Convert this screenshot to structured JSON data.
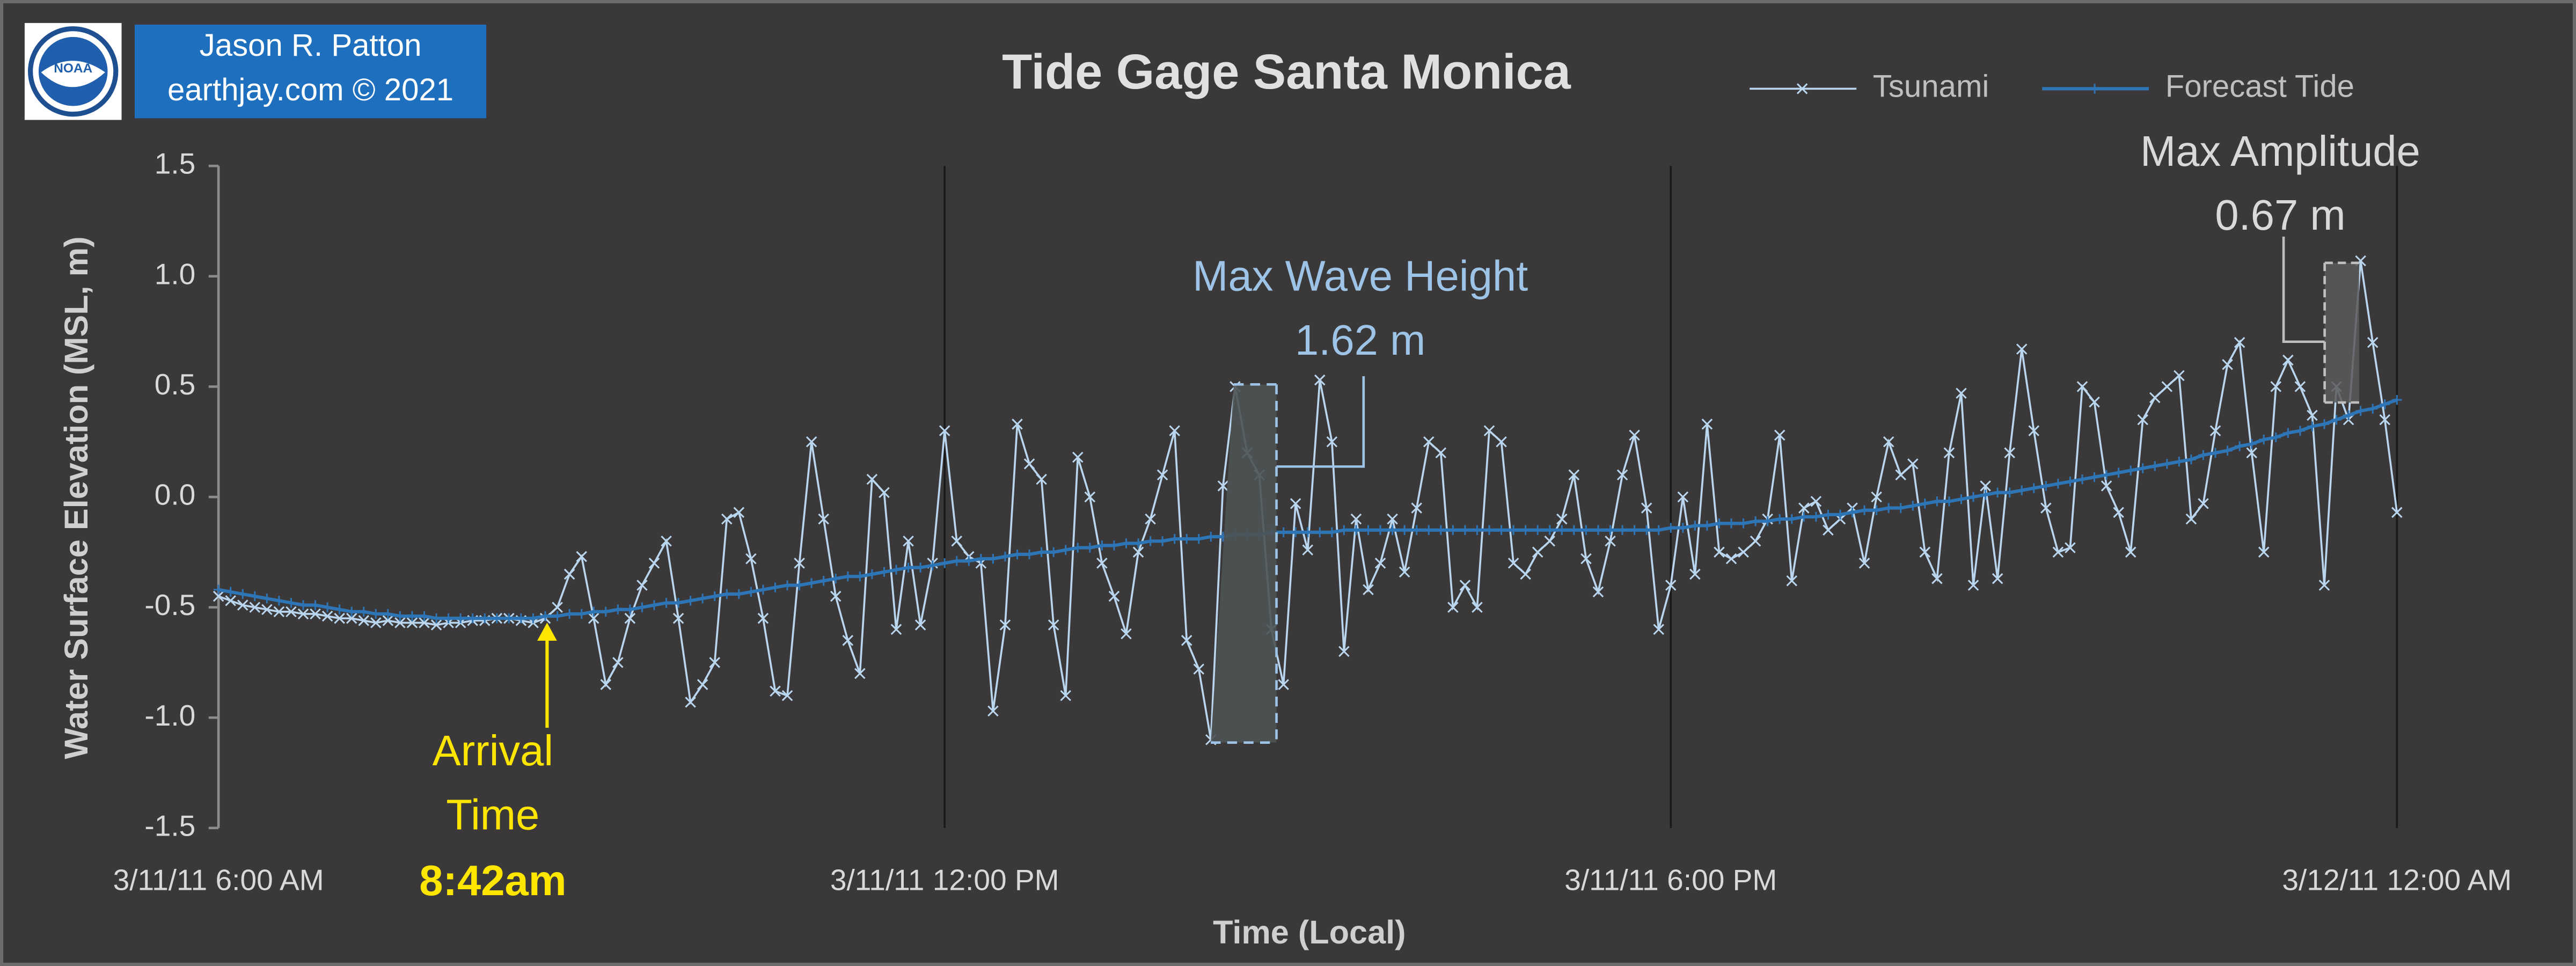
{
  "chart_data": {
    "type": "line",
    "title": "Tide Gage Santa Monica",
    "x_label": "Time (Local)",
    "y_label": "Water Surface Elevation (MSL, m)",
    "credit": [
      "Jason R. Patton",
      "earthjay.com © 2021"
    ],
    "logo_text": "NOAA",
    "annotations": [
      "Max Wave Height",
      "1.62 m",
      "Max Amplitude",
      "0.67 m",
      "Arrival",
      "Time",
      "8:42am"
    ],
    "legend": "top-right",
    "xlim": [
      6,
      24
    ],
    "ylim": [
      -1.5,
      1.5
    ],
    "xticks": [
      {
        "value": 6,
        "label": "3/11/11 6:00 AM"
      },
      {
        "value": 12,
        "label": "3/11/11 12:00 PM"
      },
      {
        "value": 18,
        "label": "3/11/11 6:00 PM"
      },
      {
        "value": 24,
        "label": "3/12/11 12:00 AM"
      }
    ],
    "yticks": [
      {
        "value": -1.5,
        "label": "-1.5"
      },
      {
        "value": -1,
        "label": "-1.0"
      },
      -0.5,
      {
        "value": 0,
        "label": "0.0"
      },
      0.5,
      {
        "value": 1,
        "label": "1.0"
      },
      1.5
    ],
    "x": [
      6,
      6.1,
      6.2,
      6.3,
      6.4,
      6.5,
      6.6,
      6.7,
      6.8,
      6.9,
      7,
      7.1,
      7.2,
      7.3,
      7.4,
      7.5,
      7.6,
      7.7,
      7.8,
      7.9,
      8,
      8.1,
      8.2,
      8.3,
      8.4,
      8.5,
      8.6,
      8.7,
      8.8,
      8.9,
      9,
      9.1,
      9.2,
      9.3,
      9.4,
      9.5,
      9.6,
      9.7,
      9.8,
      9.9,
      10,
      10.1,
      10.2,
      10.3,
      10.4,
      10.5,
      10.6,
      10.7,
      10.8,
      10.9,
      11,
      11.1,
      11.2,
      11.3,
      11.4,
      11.5,
      11.6,
      11.7,
      11.8,
      11.9,
      12,
      12.1,
      12.2,
      12.3,
      12.4,
      12.5,
      12.6,
      12.7,
      12.8,
      12.9,
      13,
      13.1,
      13.2,
      13.3,
      13.4,
      13.5,
      13.6,
      13.7,
      13.8,
      13.9,
      14,
      14.1,
      14.2,
      14.3,
      14.4,
      14.5,
      14.6,
      14.7,
      14.8,
      14.9,
      15,
      15.1,
      15.2,
      15.3,
      15.4,
      15.5,
      15.6,
      15.7,
      15.8,
      15.9,
      16,
      16.1,
      16.2,
      16.3,
      16.4,
      16.5,
      16.6,
      16.7,
      16.8,
      16.9,
      17,
      17.1,
      17.2,
      17.3,
      17.4,
      17.5,
      17.6,
      17.7,
      17.8,
      17.9,
      18,
      18.1,
      18.2,
      18.3,
      18.4,
      18.5,
      18.6,
      18.7,
      18.8,
      18.9,
      19,
      19.1,
      19.2,
      19.3,
      19.4,
      19.5,
      19.6,
      19.7,
      19.8,
      19.9,
      20,
      20.1,
      20.2,
      20.3,
      20.4,
      20.5,
      20.6,
      20.7,
      20.8,
      20.9,
      21,
      21.1,
      21.2,
      21.3,
      21.4,
      21.5,
      21.6,
      21.7,
      21.8,
      21.9,
      22,
      22.1,
      22.2,
      22.3,
      22.4,
      22.5,
      22.6,
      22.7,
      22.8,
      22.9,
      23,
      23.1,
      23.2,
      23.3,
      23.4,
      23.5,
      23.6,
      23.7,
      23.8,
      23.9,
      24
    ],
    "series": [
      {
        "name": "Tsunami",
        "color": "#b9d6ee",
        "marker": "x",
        "values": [
          -0.45,
          -0.47,
          -0.49,
          -0.5,
          -0.51,
          -0.52,
          -0.52,
          -0.53,
          -0.53,
          -0.54,
          -0.55,
          -0.55,
          -0.56,
          -0.57,
          -0.56,
          -0.57,
          -0.57,
          -0.57,
          -0.58,
          -0.57,
          -0.57,
          -0.56,
          -0.56,
          -0.55,
          -0.55,
          -0.56,
          -0.57,
          -0.55,
          -0.5,
          -0.35,
          -0.27,
          -0.55,
          -0.85,
          -0.75,
          -0.55,
          -0.4,
          -0.3,
          -0.2,
          -0.55,
          -0.93,
          -0.85,
          -0.75,
          -0.1,
          -0.07,
          -0.28,
          -0.55,
          -0.88,
          -0.9,
          -0.3,
          0.25,
          -0.1,
          -0.45,
          -0.65,
          -0.8,
          0.08,
          0.02,
          -0.6,
          -0.2,
          -0.58,
          -0.3,
          0.3,
          -0.2,
          -0.27,
          -0.3,
          -0.97,
          -0.58,
          0.33,
          0.15,
          0.08,
          -0.58,
          -0.9,
          0.18,
          0,
          -0.3,
          -0.45,
          -0.62,
          -0.25,
          -0.1,
          0.1,
          0.3,
          -0.65,
          -0.78,
          -1.1,
          0.05,
          0.5,
          0.2,
          0.1,
          -0.6,
          -0.85,
          -0.03,
          -0.24,
          0.53,
          0.25,
          -0.7,
          -0.1,
          -0.42,
          -0.3,
          -0.1,
          -0.34,
          -0.05,
          0.25,
          0.2,
          -0.5,
          -0.4,
          -0.5,
          0.3,
          0.25,
          -0.3,
          -0.35,
          -0.25,
          -0.2,
          -0.1,
          0.1,
          -0.28,
          -0.43,
          -0.2,
          0.1,
          0.28,
          -0.05,
          -0.6,
          -0.4,
          0,
          -0.35,
          0.33,
          -0.25,
          -0.28,
          -0.25,
          -0.2,
          -0.1,
          0.28,
          -0.38,
          -0.05,
          -0.02,
          -0.15,
          -0.1,
          -0.05,
          -0.3,
          0,
          0.25,
          0.1,
          0.15,
          -0.25,
          -0.37,
          0.2,
          0.47,
          -0.4,
          0.05,
          -0.37,
          0.2,
          0.67,
          0.3,
          -0.05,
          -0.25,
          -0.23,
          0.5,
          0.43,
          0.05,
          -0.07,
          -0.25,
          0.35,
          0.45,
          0.5,
          0.55,
          -0.1,
          -0.03,
          0.3,
          0.6,
          0.7,
          0.2,
          -0.25,
          0.5,
          0.62,
          0.5,
          0.37,
          -0.4,
          0.5,
          0.35,
          1.07,
          0.7,
          0.35,
          -0.07
        ]
      },
      {
        "name": "Forecast Tide",
        "color": "#2e75b6",
        "marker": "plus",
        "values": [
          -0.42,
          -0.43,
          -0.44,
          -0.45,
          -0.46,
          -0.47,
          -0.48,
          -0.49,
          -0.49,
          -0.5,
          -0.51,
          -0.52,
          -0.52,
          -0.53,
          -0.53,
          -0.54,
          -0.54,
          -0.54,
          -0.55,
          -0.55,
          -0.55,
          -0.55,
          -0.55,
          -0.55,
          -0.55,
          -0.55,
          -0.55,
          -0.54,
          -0.54,
          -0.53,
          -0.53,
          -0.52,
          -0.52,
          -0.51,
          -0.51,
          -0.5,
          -0.49,
          -0.48,
          -0.48,
          -0.47,
          -0.46,
          -0.45,
          -0.44,
          -0.44,
          -0.43,
          -0.42,
          -0.41,
          -0.4,
          -0.4,
          -0.39,
          -0.38,
          -0.37,
          -0.36,
          -0.36,
          -0.35,
          -0.34,
          -0.33,
          -0.32,
          -0.32,
          -0.31,
          -0.3,
          -0.29,
          -0.29,
          -0.28,
          -0.28,
          -0.27,
          -0.26,
          -0.26,
          -0.25,
          -0.25,
          -0.24,
          -0.23,
          -0.23,
          -0.22,
          -0.22,
          -0.21,
          -0.21,
          -0.2,
          -0.2,
          -0.19,
          -0.19,
          -0.19,
          -0.18,
          -0.18,
          -0.17,
          -0.17,
          -0.17,
          -0.16,
          -0.16,
          -0.16,
          -0.16,
          -0.16,
          -0.16,
          -0.15,
          -0.15,
          -0.15,
          -0.15,
          -0.15,
          -0.15,
          -0.15,
          -0.15,
          -0.15,
          -0.15,
          -0.15,
          -0.15,
          -0.15,
          -0.15,
          -0.15,
          -0.15,
          -0.15,
          -0.15,
          -0.15,
          -0.15,
          -0.15,
          -0.15,
          -0.15,
          -0.15,
          -0.15,
          -0.15,
          -0.15,
          -0.14,
          -0.14,
          -0.13,
          -0.13,
          -0.12,
          -0.12,
          -0.12,
          -0.11,
          -0.11,
          -0.1,
          -0.1,
          -0.09,
          -0.09,
          -0.08,
          -0.08,
          -0.07,
          -0.06,
          -0.06,
          -0.05,
          -0.05,
          -0.04,
          -0.03,
          -0.02,
          -0.02,
          -0.01,
          0,
          0.01,
          0.02,
          0.02,
          0.03,
          0.04,
          0.05,
          0.06,
          0.07,
          0.08,
          0.09,
          0.1,
          0.11,
          0.12,
          0.13,
          0.14,
          0.15,
          0.16,
          0.17,
          0.19,
          0.2,
          0.21,
          0.23,
          0.24,
          0.26,
          0.27,
          0.29,
          0.3,
          0.32,
          0.33,
          0.35,
          0.37,
          0.39,
          0.4,
          0.42,
          0.44
        ]
      }
    ]
  }
}
